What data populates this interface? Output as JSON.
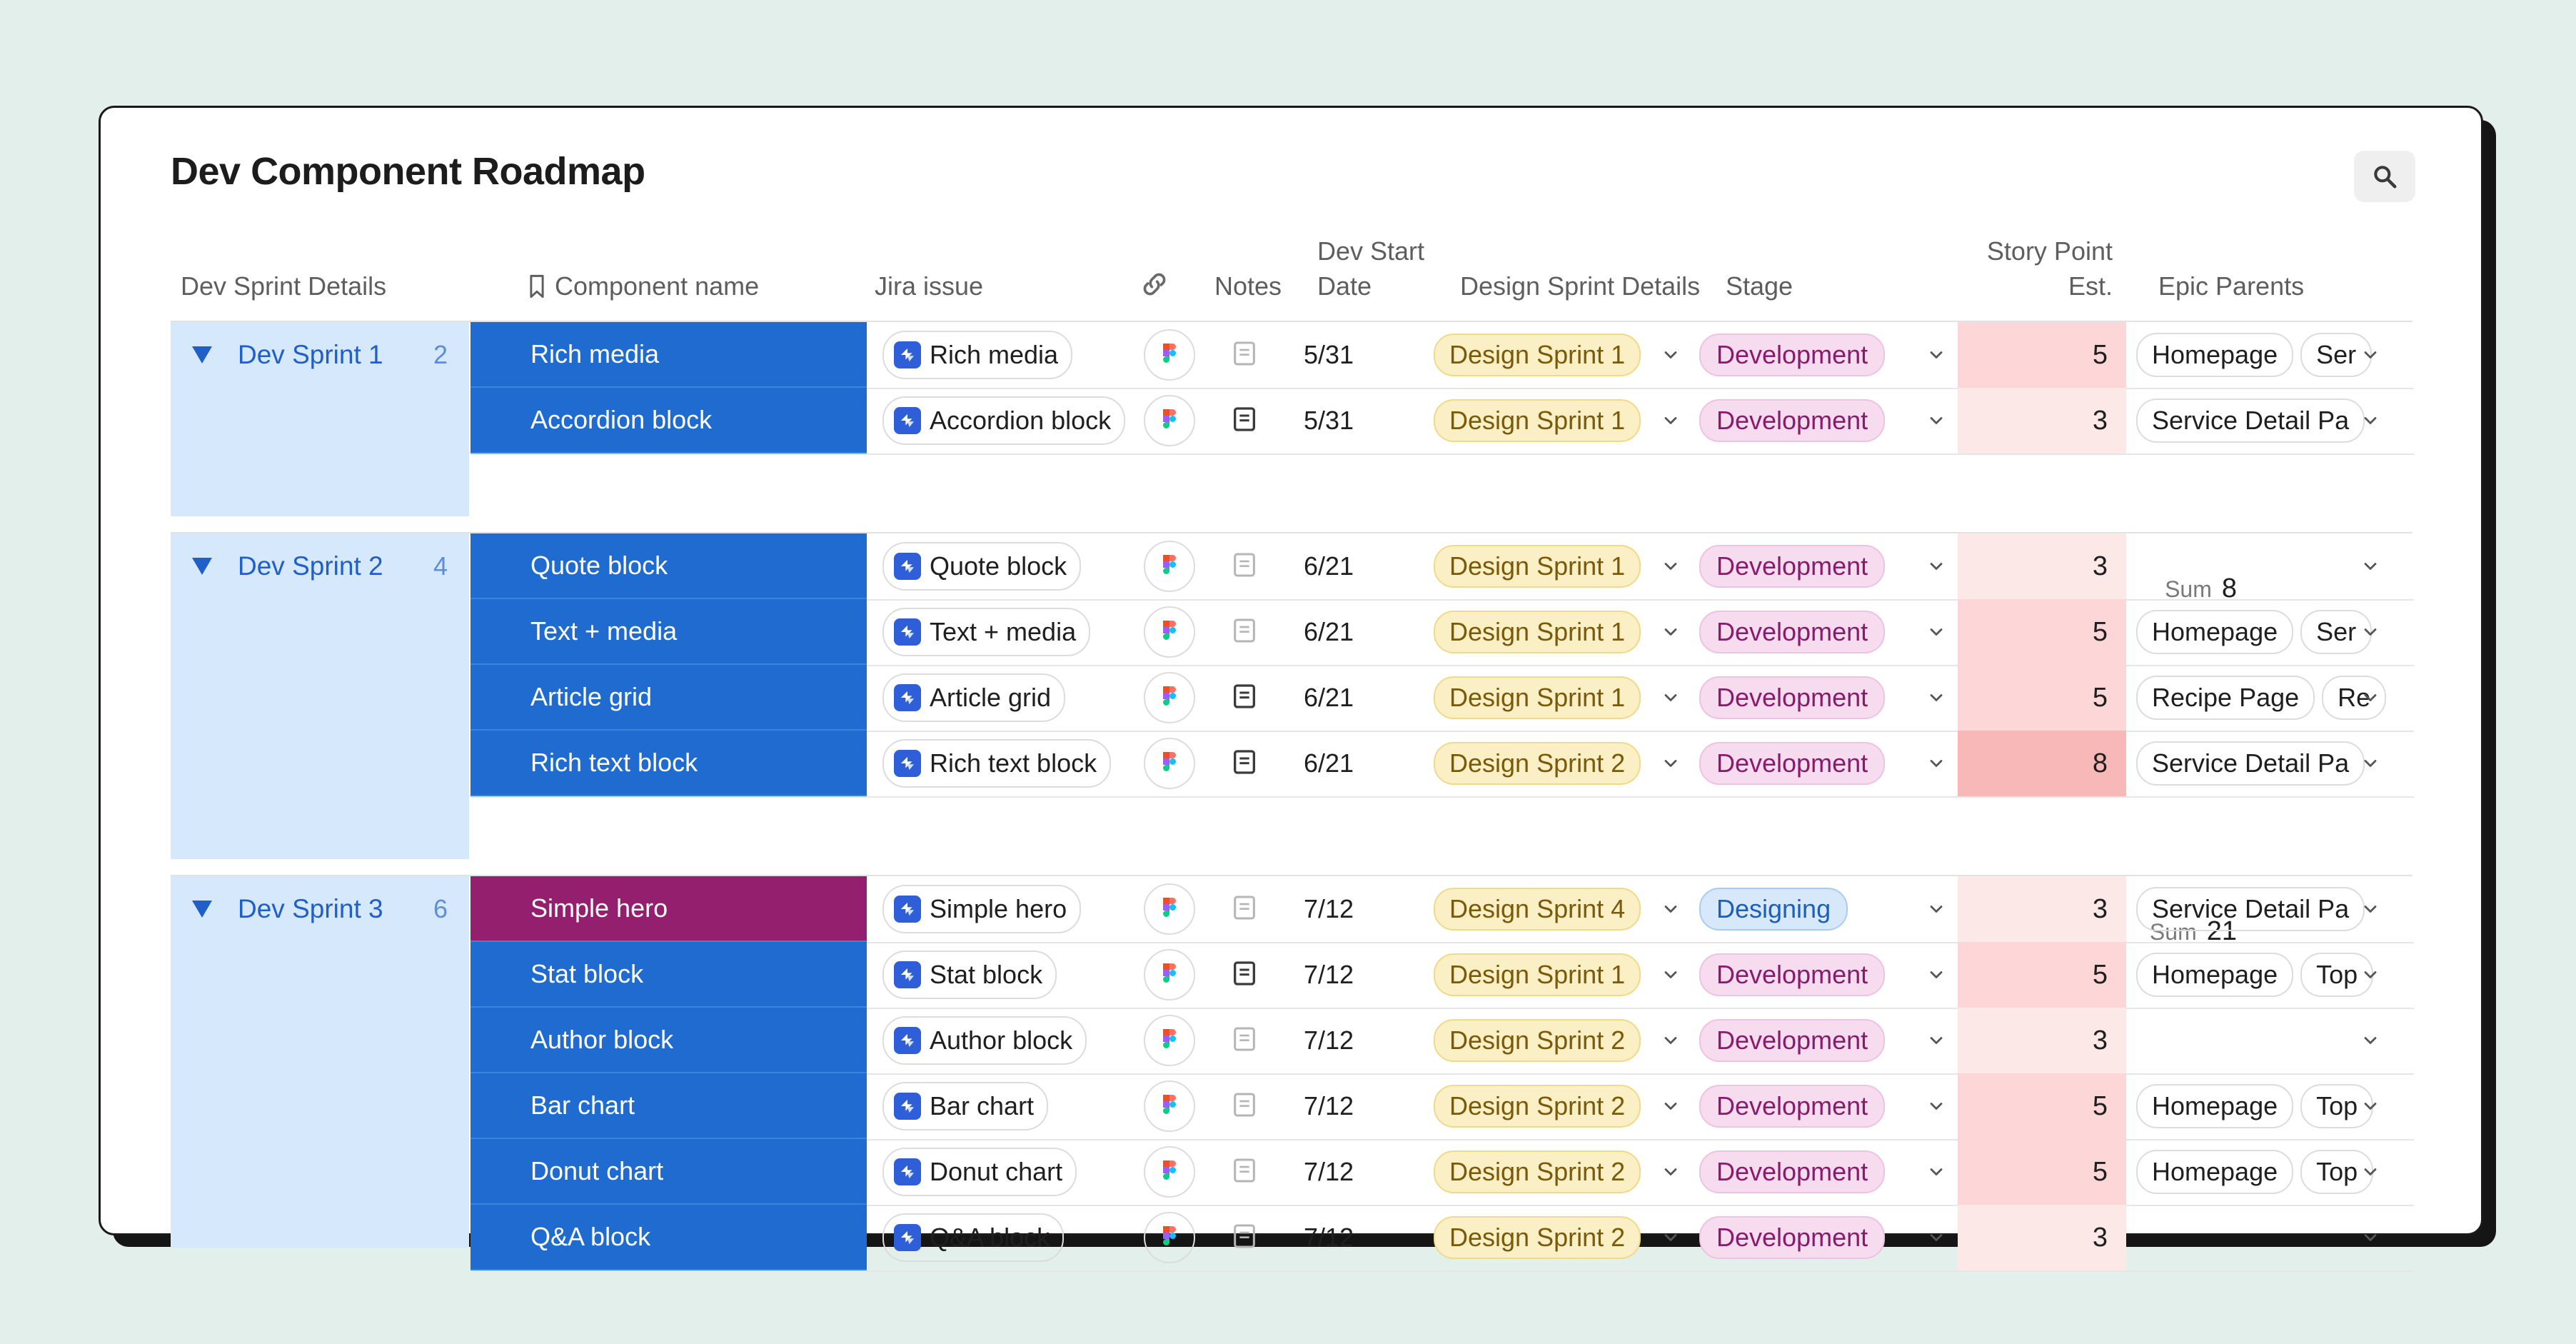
{
  "app": {
    "title": "Dev Component Roadmap",
    "search_icon": "search-icon"
  },
  "columns": {
    "dev_sprint_details": "Dev Sprint Details",
    "component_name": "Component name",
    "jira_issue": "Jira issue",
    "link_icon": "link-icon",
    "notes": "Notes",
    "dev_start_line1": "Dev Start",
    "dev_start_line2": "Date",
    "design_sprint_details": "Design Sprint Details",
    "stage": "Stage",
    "story_point_line1": "Story Point",
    "story_point_line2": "Est.",
    "epic_parents": "Epic Parents"
  },
  "colors": {
    "component_blue": "#1f6bd0",
    "component_hero": "#951f6f",
    "sprint_panel": "#d6e8fb",
    "sp_low": "#fde8e8",
    "sp_mid": "#fdd7d7",
    "sp_high": "#f9b8b8"
  },
  "sum_label": "Sum",
  "groups": [
    {
      "name": "Dev Sprint 1",
      "count": "2",
      "sum": "8",
      "rows": [
        {
          "component": "Rich media",
          "jira": "Rich media",
          "notes": "empty",
          "date": "5/31",
          "design_sprint": "Design Sprint 1",
          "stage": "Development",
          "sp": "5",
          "epics": [
            "Homepage",
            "Ser"
          ]
        },
        {
          "component": "Accordion block",
          "jira": "Accordion block",
          "notes": "filled",
          "date": "5/31",
          "design_sprint": "Design Sprint 1",
          "stage": "Development",
          "sp": "3",
          "epics": [
            "Service Detail Pa"
          ]
        }
      ]
    },
    {
      "name": "Dev Sprint 2",
      "count": "4",
      "sum": "21",
      "rows": [
        {
          "component": "Quote block",
          "jira": "Quote block",
          "notes": "empty",
          "date": "6/21",
          "design_sprint": "Design Sprint 1",
          "stage": "Development",
          "sp": "3",
          "epics": []
        },
        {
          "component": "Text + media",
          "jira": "Text + media",
          "notes": "empty",
          "date": "6/21",
          "design_sprint": "Design Sprint 1",
          "stage": "Development",
          "sp": "5",
          "epics": [
            "Homepage",
            "Ser"
          ]
        },
        {
          "component": "Article grid",
          "jira": "Article grid",
          "notes": "filled",
          "date": "6/21",
          "design_sprint": "Design Sprint 1",
          "stage": "Development",
          "sp": "5",
          "epics": [
            "Recipe Page",
            "Re"
          ]
        },
        {
          "component": "Rich text block",
          "jira": "Rich text block",
          "notes": "filled",
          "date": "6/21",
          "design_sprint": "Design Sprint 2",
          "stage": "Development",
          "sp": "8",
          "epics": [
            "Service Detail Pa"
          ]
        }
      ]
    },
    {
      "name": "Dev Sprint 3",
      "count": "6",
      "rows": [
        {
          "component": "Simple hero",
          "jira": "Simple hero",
          "notes": "empty",
          "date": "7/12",
          "design_sprint": "Design Sprint 4",
          "stage": "Designing",
          "sp": "3",
          "epics": [
            "Service Detail Pa"
          ]
        },
        {
          "component": "Stat block",
          "jira": "Stat block",
          "notes": "filled",
          "date": "7/12",
          "design_sprint": "Design Sprint 1",
          "stage": "Development",
          "sp": "5",
          "epics": [
            "Homepage",
            "Top"
          ]
        },
        {
          "component": "Author block",
          "jira": "Author block",
          "notes": "empty",
          "date": "7/12",
          "design_sprint": "Design Sprint 2",
          "stage": "Development",
          "sp": "3",
          "epics": []
        },
        {
          "component": "Bar chart",
          "jira": "Bar chart",
          "notes": "empty",
          "date": "7/12",
          "design_sprint": "Design Sprint 2",
          "stage": "Development",
          "sp": "5",
          "epics": [
            "Homepage",
            "Top"
          ]
        },
        {
          "component": "Donut chart",
          "jira": "Donut chart",
          "notes": "empty",
          "date": "7/12",
          "design_sprint": "Design Sprint 2",
          "stage": "Development",
          "sp": "5",
          "epics": [
            "Homepage",
            "Top"
          ]
        },
        {
          "component": "Q&A block",
          "jira": "Q&A block",
          "notes": "empty",
          "date": "7/12",
          "design_sprint": "Design Sprint 2",
          "stage": "Development",
          "sp": "3",
          "epics": []
        }
      ]
    }
  ]
}
